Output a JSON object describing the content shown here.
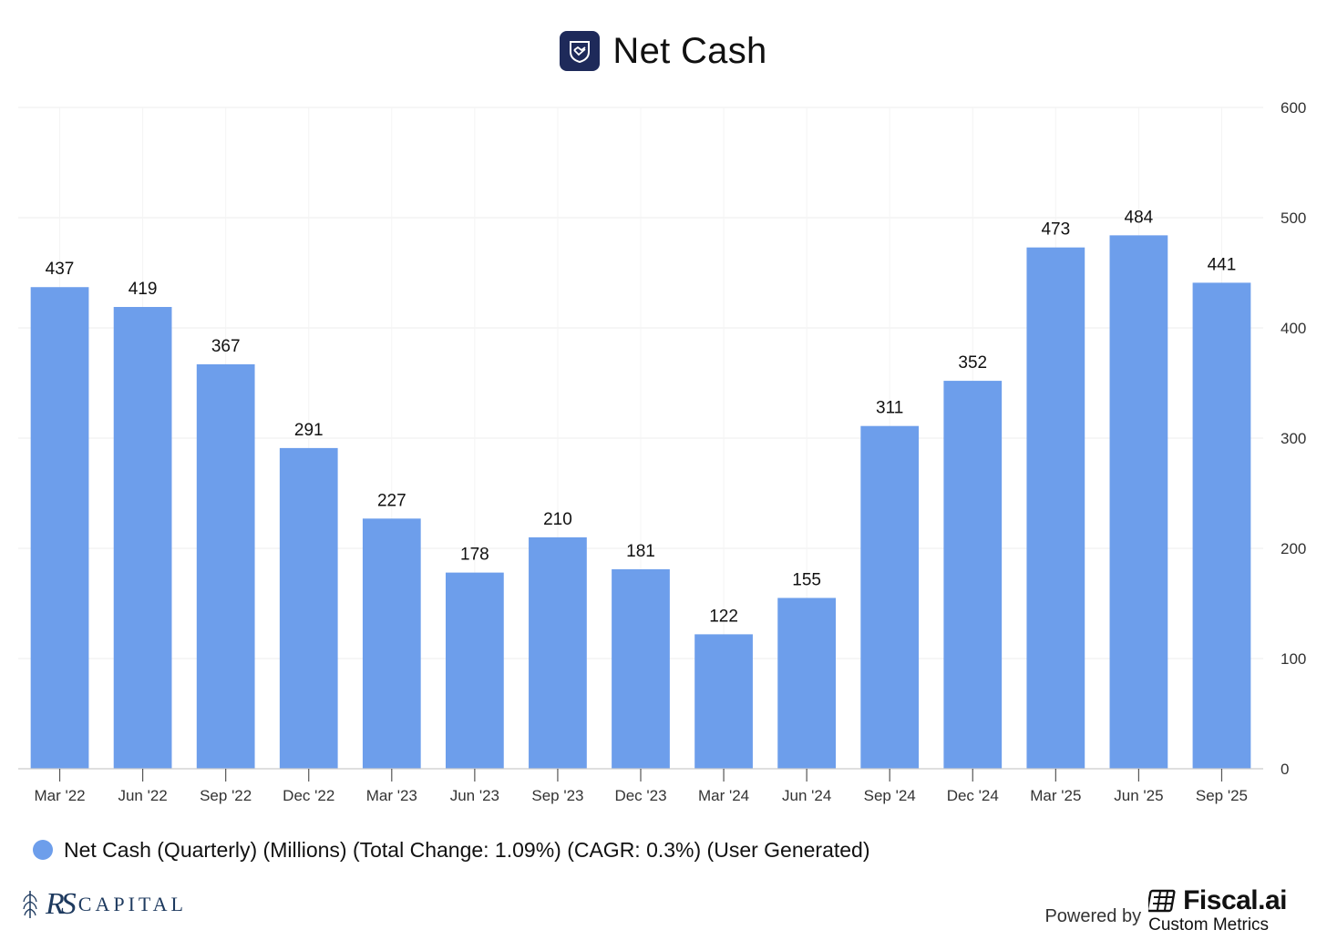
{
  "brand": {
    "title_icon": "handshake-shield-icon",
    "watermark_logo": "RS CAPITAL",
    "powered_by": "Powered by",
    "provider_icon": "fiscal-ai-icon",
    "provider_name": "Fiscal.ai",
    "provider_sub": "Custom Metrics",
    "colors": {
      "bar": "#6d9eeb",
      "logo_bg": "#1e2a5a",
      "grid": "#eeeeee",
      "axis": "#cccccc"
    }
  },
  "chart_data": {
    "type": "bar",
    "title": "Net Cash",
    "categories": [
      "Mar '22",
      "Jun '22",
      "Sep '22",
      "Dec '22",
      "Mar '23",
      "Jun '23",
      "Sep '23",
      "Dec '23",
      "Mar '24",
      "Jun '24",
      "Sep '24",
      "Dec '24",
      "Mar '25",
      "Jun '25",
      "Sep '25"
    ],
    "series": [
      {
        "name": "Net Cash (Quarterly) (Millions) (Total Change: 1.09%) (CAGR: 0.3%) (User Generated)",
        "values": [
          437,
          419,
          367,
          291,
          227,
          178,
          210,
          181,
          122,
          155,
          311,
          352,
          473,
          484,
          441
        ]
      }
    ],
    "ylim": [
      0,
      600
    ],
    "yticks": [
      0,
      100,
      200,
      300,
      400,
      500,
      600
    ],
    "yaxis_side": "right",
    "grid": true,
    "data_labels": true,
    "legend_position": "bottom-left",
    "xlabel": "",
    "ylabel": ""
  }
}
